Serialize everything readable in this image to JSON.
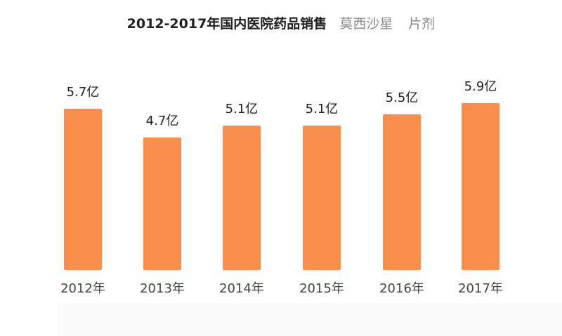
{
  "title": {
    "main": "2012-2017年国内医院药品销售",
    "drug": "莫西沙星",
    "form": "片剂"
  },
  "colors": {
    "bar": "#F98D4B"
  },
  "chart_data": {
    "type": "bar",
    "title": "2012-2017年国内医院药品销售 莫西沙星 片剂",
    "xlabel": "",
    "ylabel": "",
    "unit": "亿",
    "categories": [
      "2012年",
      "2013年",
      "2014年",
      "2015年",
      "2016年",
      "2017年"
    ],
    "values": [
      5.7,
      4.7,
      5.1,
      5.1,
      5.5,
      5.9
    ],
    "value_labels": [
      "5.7亿",
      "4.7亿",
      "5.1亿",
      "5.1亿",
      "5.5亿",
      "5.9亿"
    ],
    "grid": false,
    "legend": null
  }
}
